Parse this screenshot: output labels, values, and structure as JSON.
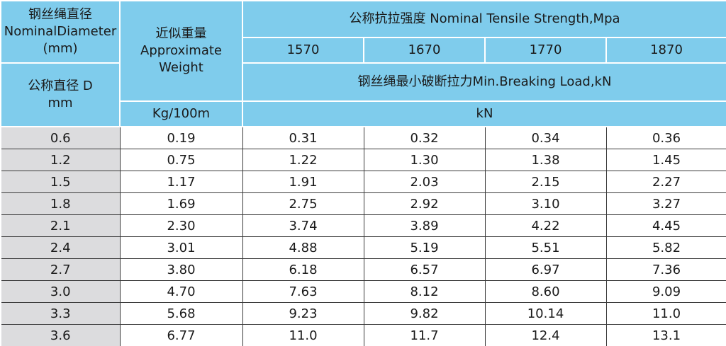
{
  "header": {
    "diameter": {
      "zh": "钢丝绳直径",
      "en": "NominalDiameter",
      "unit": "(mm)"
    },
    "weight": {
      "zh": "近似重量",
      "en1": "Approximate",
      "en2": "Weight"
    },
    "tensile_strength": "公称抗拉强度 Nominal Tensile Strength,Mpa",
    "grades": [
      "1570",
      "1670",
      "1770",
      "1870"
    ],
    "breaking_load": "钢丝绳最小破断拉力Min.Breaking Load,kN",
    "diameter_d": {
      "line1": "公称直径 D",
      "line2": "mm"
    },
    "weight_unit": "Kg/100m",
    "load_unit": "kN"
  },
  "rows": [
    {
      "d": "0.6",
      "w": "0.19",
      "loads": [
        "0.31",
        "0.32",
        "0.34",
        "0.36"
      ]
    },
    {
      "d": "1.2",
      "w": "0.75",
      "loads": [
        "1.22",
        "1.30",
        "1.38",
        "1.45"
      ]
    },
    {
      "d": "1.5",
      "w": "1.17",
      "loads": [
        "1.91",
        "2.03",
        "2.15",
        "2.27"
      ]
    },
    {
      "d": "1.8",
      "w": "1.69",
      "loads": [
        "2.75",
        "2.92",
        "3.10",
        "3.27"
      ]
    },
    {
      "d": "2.1",
      "w": "2.30",
      "loads": [
        "3.74",
        "3.89",
        "4.22",
        "4.45"
      ]
    },
    {
      "d": "2.4",
      "w": "3.01",
      "loads": [
        "4.88",
        "5.19",
        "5.51",
        "5.82"
      ]
    },
    {
      "d": "2.7",
      "w": "3.80",
      "loads": [
        "6.18",
        "6.57",
        "6.97",
        "7.36"
      ]
    },
    {
      "d": "3.0",
      "w": "4.70",
      "loads": [
        "7.63",
        "8.12",
        "8.60",
        "9.09"
      ]
    },
    {
      "d": "3.3",
      "w": "5.68",
      "loads": [
        "9.23",
        "9.82",
        "10.14",
        "11.0"
      ]
    },
    {
      "d": "3.6",
      "w": "6.77",
      "loads": [
        "11.0",
        "11.7",
        "12.4",
        "13.1"
      ]
    }
  ],
  "colors": {
    "header_bg": "#7fccec",
    "diameter_col_bg": "#dcdcde",
    "data_bg": "#ffffff",
    "text": "#1a1a1a"
  }
}
